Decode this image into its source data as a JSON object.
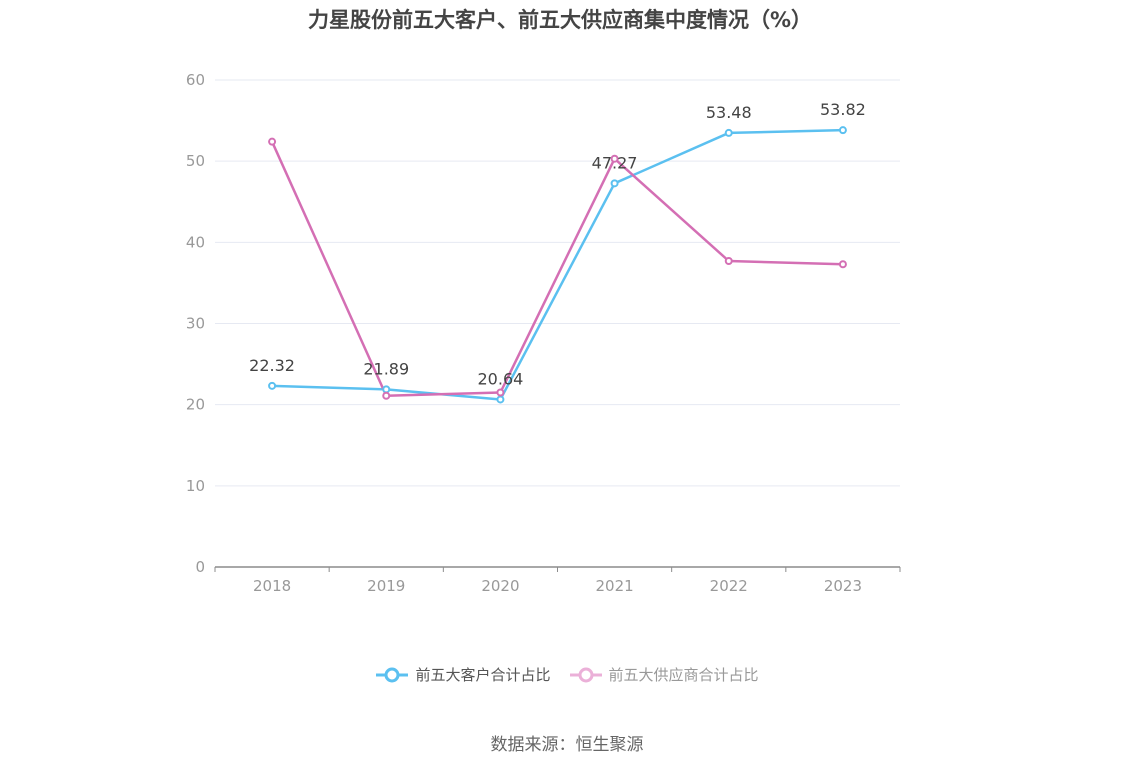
{
  "chart_data": {
    "type": "line",
    "title": "力星股份前五大客户、前五大供应商集中度情况（%）",
    "categories": [
      "2018",
      "2019",
      "2020",
      "2021",
      "2022",
      "2023"
    ],
    "ylim": [
      0,
      60
    ],
    "yticks": [
      0,
      10,
      20,
      30,
      40,
      50,
      60
    ],
    "grid": true,
    "legend_position": "bottom",
    "series": [
      {
        "name": "前五大客户合计占比",
        "color": "#5bc0f0",
        "values": [
          22.32,
          21.89,
          20.64,
          47.27,
          53.48,
          53.82
        ],
        "labels": [
          "22.32",
          "21.89",
          "20.64",
          "47.27",
          "53.48",
          "53.82"
        ]
      },
      {
        "name": "前五大供应商合计占比",
        "color": "#d46fb4",
        "values": [
          52.4,
          21.1,
          21.5,
          50.3,
          37.7,
          37.3
        ]
      }
    ]
  },
  "source": "数据来源：恒生聚源"
}
